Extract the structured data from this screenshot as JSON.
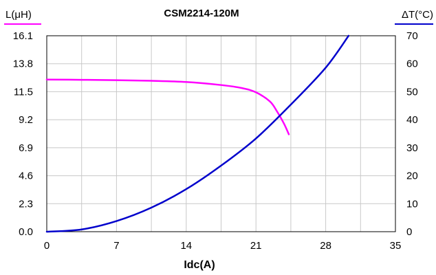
{
  "chart_data": {
    "type": "line",
    "title": "CSM2214-120M",
    "xlabel": "Idc(A)",
    "ylabel_left": "L(μH)",
    "ylabel_right": "ΔT(°C)",
    "xlim": [
      0,
      35
    ],
    "x_ticks": [
      "0",
      "7",
      "14",
      "21",
      "28",
      "35"
    ],
    "ylim_left": [
      0,
      16.1
    ],
    "y_left_ticks": [
      "0.0",
      "2.3",
      "4.6",
      "6.9",
      "9.2",
      "11.5",
      "13.8",
      "16.1"
    ],
    "ylim_right": [
      0,
      70
    ],
    "y_right_ticks": [
      "0",
      "10",
      "20",
      "30",
      "40",
      "50",
      "60",
      "70"
    ],
    "grid": true,
    "colors": {
      "inductance": "#ff00ff",
      "temperature": "#0000cc"
    },
    "series": [
      {
        "axis": "left",
        "x": [
          0,
          3.5,
          7,
          10.5,
          14,
          17.5,
          19.6,
          21,
          22.4,
          23.1,
          23.8,
          24.3
        ],
        "y": [
          12.5,
          12.48,
          12.45,
          12.4,
          12.3,
          12.05,
          11.8,
          11.45,
          10.7,
          9.9,
          8.9,
          8.0
        ]
      },
      {
        "axis": "right",
        "x": [
          0,
          3.5,
          7,
          10.5,
          14,
          17.5,
          21,
          24.5,
          28,
          30.3
        ],
        "y": [
          0,
          0.8,
          3.8,
          8.6,
          15.2,
          23.6,
          33.3,
          45.4,
          58.6,
          70
        ]
      }
    ]
  }
}
